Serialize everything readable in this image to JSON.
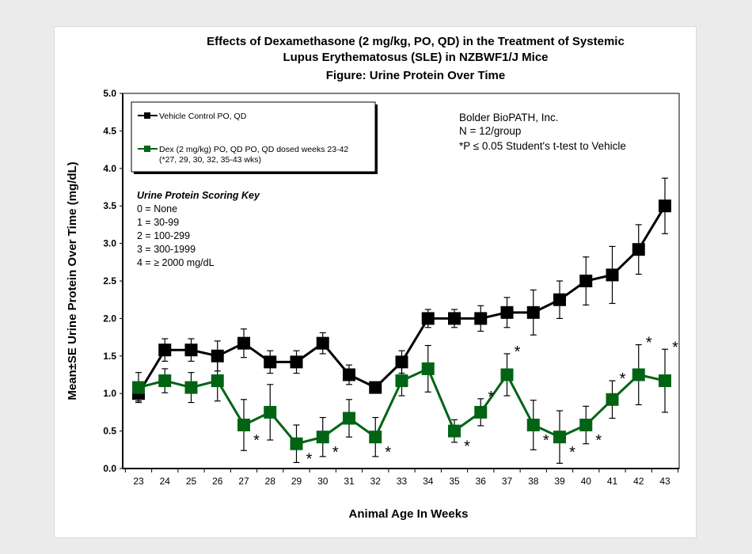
{
  "chart_data": {
    "type": "line",
    "title": [
      "Effects of Dexamethasone (2 mg/kg, PO, QD) in the Treatment of Systemic",
      "Lupus Erythematosus (SLE) in NZBWF1/J Mice",
      "Figure: Urine Protein Over Time"
    ],
    "xlabel": "Animal Age In Weeks",
    "ylabel": "Mean±SE Urine Protein Over Time (mg/dL)",
    "x": [
      23,
      24,
      25,
      26,
      27,
      28,
      29,
      30,
      31,
      32,
      33,
      34,
      35,
      36,
      37,
      38,
      39,
      40,
      41,
      42,
      43
    ],
    "ylim": [
      0,
      5
    ],
    "yticks": [
      "0.0",
      "0.5",
      "1.0",
      "1.5",
      "2.0",
      "2.5",
      "3.0",
      "3.5",
      "4.0",
      "4.5",
      "5.0"
    ],
    "grid": false,
    "legend_position": "top-left",
    "series": [
      {
        "name": "Vehicle Control PO, QD",
        "color": "#000000",
        "values": [
          1.0,
          1.58,
          1.58,
          1.5,
          1.67,
          1.42,
          1.42,
          1.67,
          1.25,
          1.08,
          1.42,
          2.0,
          2.0,
          2.0,
          2.08,
          2.08,
          2.25,
          2.5,
          2.58,
          2.92,
          3.5
        ],
        "se": [
          0.1,
          0.15,
          0.15,
          0.2,
          0.19,
          0.15,
          0.15,
          0.14,
          0.13,
          0.05,
          0.15,
          0.12,
          0.12,
          0.17,
          0.2,
          0.3,
          0.25,
          0.32,
          0.38,
          0.33,
          0.37
        ]
      },
      {
        "name": "Dex (2 mg/kg) PO, QD PO, QD dosed weeks 23-42",
        "name_line2": "(*27, 29, 30, 32, 35-43 wks)",
        "color": "#006414",
        "values": [
          1.08,
          1.17,
          1.08,
          1.17,
          0.58,
          0.75,
          0.33,
          0.42,
          0.67,
          0.42,
          1.17,
          1.33,
          0.5,
          0.75,
          1.25,
          0.58,
          0.42,
          0.58,
          0.92,
          1.25,
          1.17
        ],
        "se": [
          0.2,
          0.16,
          0.2,
          0.27,
          0.34,
          0.37,
          0.25,
          0.26,
          0.25,
          0.26,
          0.2,
          0.31,
          0.15,
          0.18,
          0.28,
          0.33,
          0.35,
          0.25,
          0.25,
          0.4,
          0.42
        ],
        "significant": [
          27,
          29,
          30,
          32,
          35,
          36,
          37,
          38,
          39,
          40,
          41,
          42,
          43
        ]
      }
    ],
    "annotations": [
      "Bolder BioPATH, Inc.",
      "N = 12/group",
      "*P ≤ 0.05 Student's t-test to Vehicle"
    ],
    "scoring_key": {
      "title": "Urine Protein Scoring Key",
      "items": [
        "0 = None",
        "1 = 30-99",
        "2 = 100-299",
        "3 = 300-1999",
        "4 = ≥ 2000 mg/dL"
      ]
    }
  }
}
